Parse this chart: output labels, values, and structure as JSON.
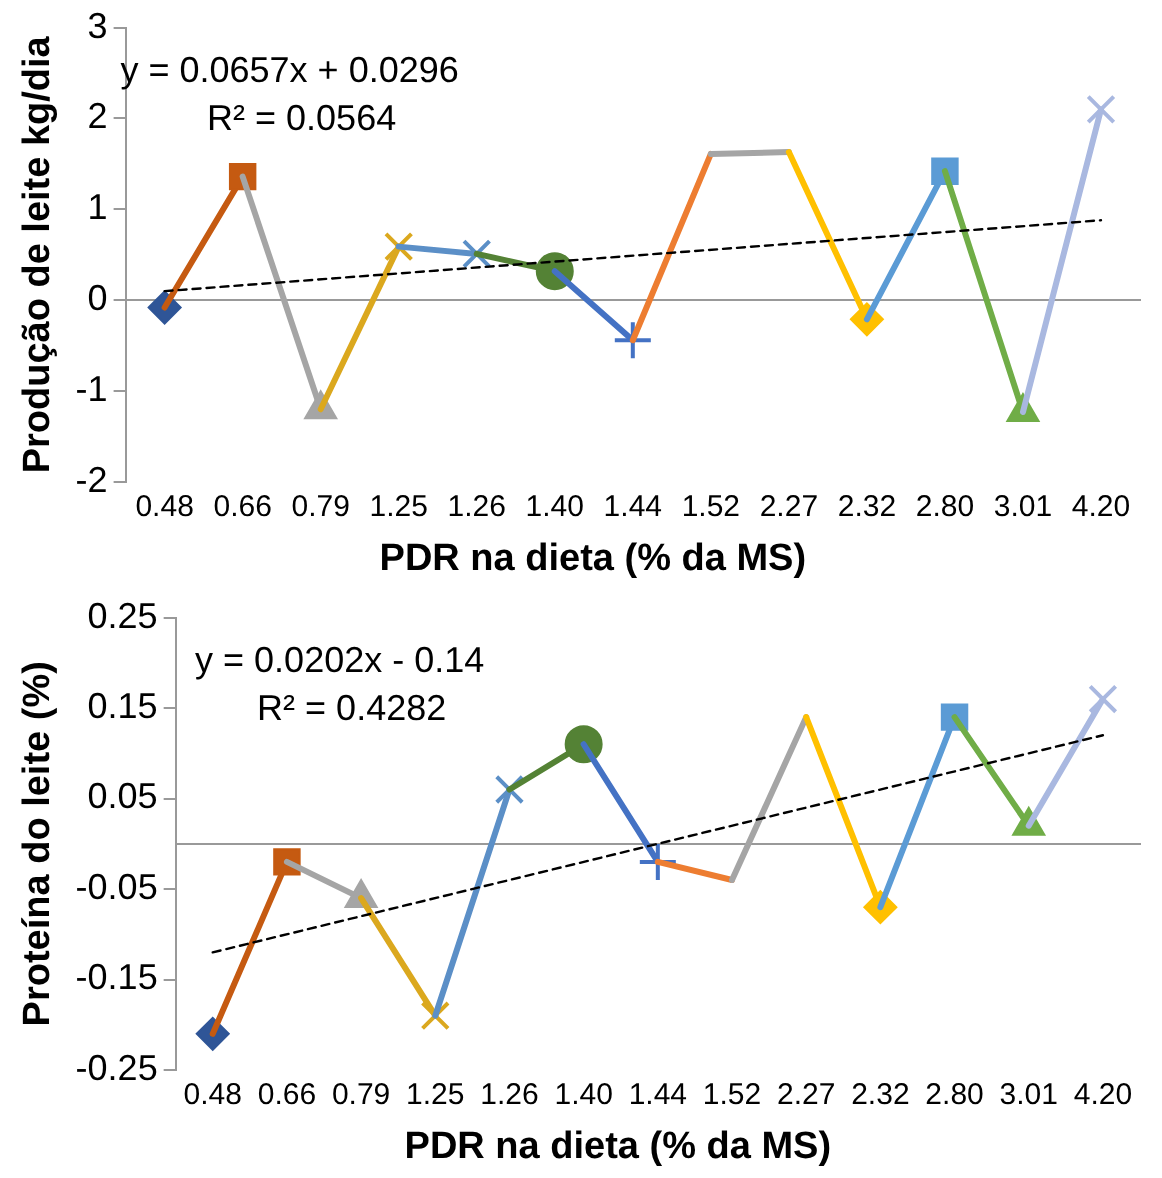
{
  "chart_data": [
    {
      "type": "line",
      "xlabel": "PDR na dieta (% da MS)",
      "ylabel": "Produção de leite kg/dia",
      "categories": [
        "0.48",
        "0.66",
        "0.79",
        "1.25",
        "1.26",
        "1.40",
        "1.44",
        "1.52",
        "2.27",
        "2.32",
        "2.80",
        "3.01",
        "4.20"
      ],
      "series": [
        {
          "color": "#2f5597",
          "marker": "diamond",
          "values": [
            -0.08,
            null,
            null,
            null,
            null,
            null,
            null,
            null,
            null,
            null,
            null,
            null,
            null
          ]
        },
        {
          "color": "#c55a11",
          "marker": "square",
          "values": [
            -0.08,
            1.36,
            null,
            null,
            null,
            null,
            null,
            null,
            null,
            null,
            null,
            null,
            null
          ]
        },
        {
          "color": "#a5a5a5",
          "marker": "triangle",
          "values": [
            null,
            1.36,
            -1.2,
            null,
            null,
            null,
            null,
            null,
            null,
            null,
            null,
            null,
            null
          ]
        },
        {
          "color": "#dba81e",
          "marker": "cross",
          "values": [
            null,
            null,
            -1.2,
            0.59,
            null,
            null,
            null,
            null,
            null,
            null,
            null,
            null,
            null
          ]
        },
        {
          "color": "#5b8fc7",
          "marker": "cross",
          "values": [
            null,
            null,
            null,
            0.59,
            0.51,
            null,
            null,
            null,
            null,
            null,
            null,
            null,
            null
          ]
        },
        {
          "color": "#548235",
          "marker": "circle",
          "values": [
            null,
            null,
            null,
            null,
            0.51,
            0.32,
            null,
            null,
            null,
            null,
            null,
            null,
            null
          ]
        },
        {
          "color": "#4472c4",
          "marker": "plus",
          "values": [
            null,
            null,
            null,
            null,
            null,
            0.32,
            -0.44,
            null,
            null,
            null,
            null,
            null,
            null
          ]
        },
        {
          "color": "#ed7d31",
          "marker": "none",
          "values": [
            null,
            null,
            null,
            null,
            null,
            null,
            -0.44,
            1.61,
            null,
            null,
            null,
            null,
            null
          ]
        },
        {
          "color": "#a5a5a5",
          "marker": "none",
          "values": [
            null,
            null,
            null,
            null,
            null,
            null,
            null,
            1.61,
            1.63,
            null,
            null,
            null,
            null
          ]
        },
        {
          "color": "#ffc000",
          "marker": "diamond",
          "values": [
            null,
            null,
            null,
            null,
            null,
            null,
            null,
            null,
            1.63,
            -0.21,
            null,
            null,
            null
          ]
        },
        {
          "color": "#5b9bd5",
          "marker": "square",
          "values": [
            null,
            null,
            null,
            null,
            null,
            null,
            null,
            null,
            null,
            -0.21,
            1.42,
            null,
            null
          ]
        },
        {
          "color": "#70ad47",
          "marker": "triangle",
          "values": [
            null,
            null,
            null,
            null,
            null,
            null,
            null,
            null,
            null,
            null,
            1.42,
            -1.23,
            null
          ]
        },
        {
          "color": "#a9b8e0",
          "marker": "cross",
          "values": [
            null,
            null,
            null,
            null,
            null,
            null,
            null,
            null,
            null,
            null,
            null,
            -1.23,
            2.1
          ]
        },
        {
          "type": "line",
          "color": "#000000",
          "line_style": "dashed",
          "marker": "none",
          "values": [
            0.1,
            null,
            null,
            null,
            null,
            null,
            null,
            null,
            null,
            null,
            null,
            null,
            0.88
          ]
        }
      ],
      "ylim": [
        -2,
        3
      ],
      "yticks": [
        -2,
        -1,
        0,
        1,
        2,
        3
      ],
      "annotations": [
        "y = 0.0657x + 0.0296",
        "R² = 0.0564"
      ]
    },
    {
      "type": "line",
      "xlabel": "PDR na dieta (% da MS)",
      "ylabel": "Proteína do leite (%)",
      "categories": [
        "0.48",
        "0.66",
        "0.79",
        "1.25",
        "1.26",
        "1.40",
        "1.44",
        "1.52",
        "2.27",
        "2.32",
        "2.80",
        "3.01",
        "4.20"
      ],
      "series": [
        {
          "color": "#2f5597",
          "marker": "diamond",
          "values": [
            -0.21,
            null,
            null,
            null,
            null,
            null,
            null,
            null,
            null,
            null,
            null,
            null,
            null
          ]
        },
        {
          "color": "#c55a11",
          "marker": "square",
          "values": [
            -0.21,
            -0.02,
            null,
            null,
            null,
            null,
            null,
            null,
            null,
            null,
            null,
            null,
            null
          ]
        },
        {
          "color": "#a5a5a5",
          "marker": "triangle",
          "values": [
            null,
            -0.02,
            -0.06,
            null,
            null,
            null,
            null,
            null,
            null,
            null,
            null,
            null,
            null
          ]
        },
        {
          "color": "#dba81e",
          "marker": "cross",
          "values": [
            null,
            null,
            -0.06,
            -0.19,
            null,
            null,
            null,
            null,
            null,
            null,
            null,
            null,
            null
          ]
        },
        {
          "color": "#5b8fc7",
          "marker": "cross",
          "values": [
            null,
            null,
            null,
            -0.19,
            0.06,
            null,
            null,
            null,
            null,
            null,
            null,
            null,
            null
          ]
        },
        {
          "color": "#548235",
          "marker": "circle",
          "values": [
            null,
            null,
            null,
            null,
            0.06,
            0.11,
            null,
            null,
            null,
            null,
            null,
            null,
            null
          ]
        },
        {
          "color": "#4472c4",
          "marker": "plus",
          "values": [
            null,
            null,
            null,
            null,
            null,
            0.11,
            -0.02,
            null,
            null,
            null,
            null,
            null,
            null
          ]
        },
        {
          "color": "#ed7d31",
          "marker": "none",
          "values": [
            null,
            null,
            null,
            null,
            null,
            null,
            -0.02,
            -0.04,
            null,
            null,
            null,
            null,
            null
          ]
        },
        {
          "color": "#a5a5a5",
          "marker": "none",
          "values": [
            null,
            null,
            null,
            null,
            null,
            null,
            null,
            -0.04,
            0.14,
            null,
            null,
            null,
            null
          ]
        },
        {
          "color": "#ffc000",
          "marker": "diamond",
          "values": [
            null,
            null,
            null,
            null,
            null,
            null,
            null,
            null,
            0.14,
            -0.07,
            null,
            null,
            null
          ]
        },
        {
          "color": "#5b9bd5",
          "marker": "square",
          "values": [
            null,
            null,
            null,
            null,
            null,
            null,
            null,
            null,
            null,
            -0.07,
            0.14,
            null,
            null
          ]
        },
        {
          "color": "#70ad47",
          "marker": "triangle",
          "values": [
            null,
            null,
            null,
            null,
            null,
            null,
            null,
            null,
            null,
            null,
            0.14,
            0.02,
            null
          ]
        },
        {
          "color": "#a9b8e0",
          "marker": "cross",
          "values": [
            null,
            null,
            null,
            null,
            null,
            null,
            null,
            null,
            null,
            null,
            null,
            0.02,
            0.16
          ]
        },
        {
          "type": "line",
          "color": "#000000",
          "line_style": "dashed",
          "marker": "none",
          "values": [
            -0.12,
            null,
            null,
            null,
            null,
            null,
            null,
            null,
            null,
            null,
            null,
            null,
            0.12
          ]
        }
      ],
      "ylim": [
        -0.25,
        0.25
      ],
      "yticks": [
        -0.25,
        -0.15,
        -0.05,
        0.05,
        0.15,
        0.25
      ],
      "annotations": [
        "y = 0.0202x - 0.14",
        "R² = 0.4282"
      ]
    }
  ]
}
